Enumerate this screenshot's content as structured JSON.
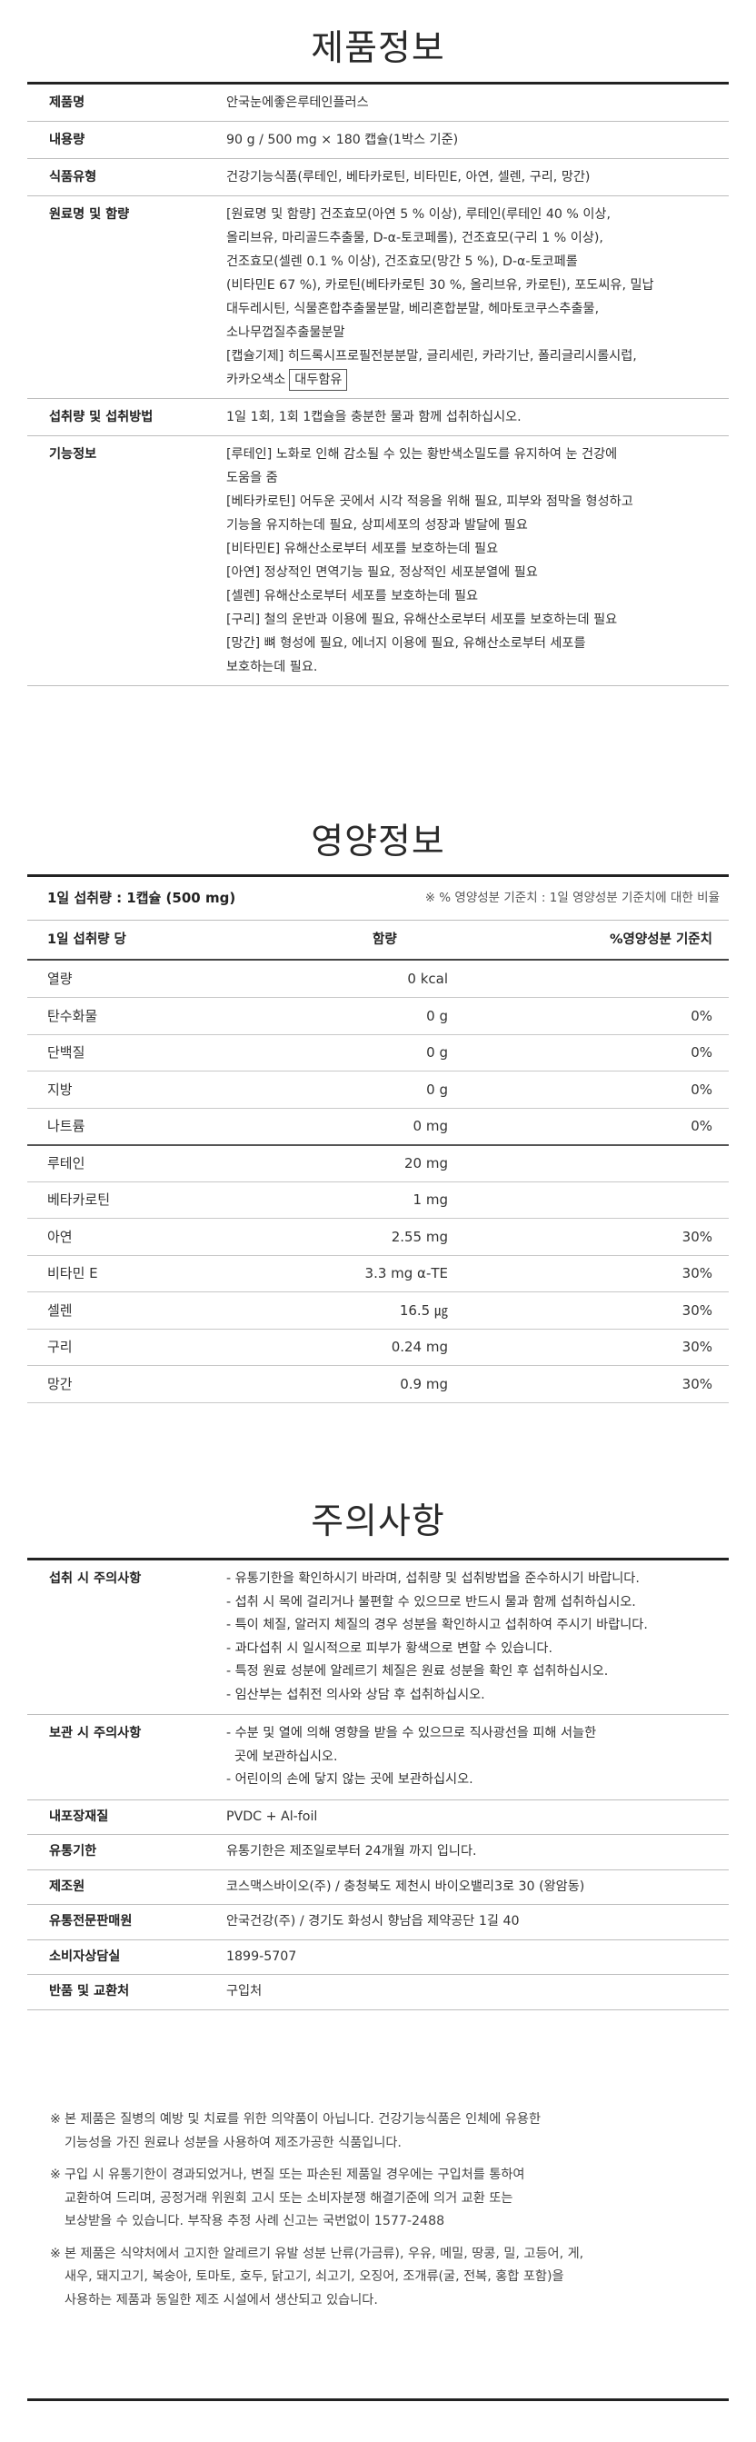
{
  "product_info": {
    "title": "제품정보",
    "rows": [
      {
        "label": "제품명",
        "lines": [
          "안국눈에좋은루테인플러스"
        ]
      },
      {
        "label": "내용량",
        "lines": [
          "90 g / 500 mg × 180 캡슐(1박스 기준)"
        ]
      },
      {
        "label": "식품유형",
        "lines": [
          "건강기능식품(루테인, 베타카로틴, 비타민E, 아연, 셀렌, 구리, 망간)"
        ]
      },
      {
        "label": "원료명 및 함량",
        "lines": [
          "[원료명 및 함량] 건조효모(아연 5 % 이상), 루테인(루테인 40 % 이상,",
          "올리브유, 마리골드추출물, D-α-토코페롤), 건조효모(구리 1 % 이상),",
          "건조효모(셀렌 0.1 % 이상), 건조효모(망간 5 %), D-α-토코페롤",
          "(비타민E 67 %), 카로틴(베타카로틴 30 %, 올리브유, 카로틴), 포도씨유, 밀납",
          "대두레시틴, 식물혼합추출물분말, 베리혼합분말, 헤마토코쿠스추출물,",
          "소나무껍질추출물분말",
          "[캡슐기제] 히드록시프로필전분분말, 글리세린, 카라기난, 폴리글리시롤시럽,"
        ],
        "last_line": "카카오색소",
        "highlight": "대두함유"
      },
      {
        "label": "섭취량 및 섭취방법",
        "lines": [
          "1일 1회, 1회 1캡슐을 충분한 물과 함께 섭취하십시오."
        ]
      },
      {
        "label": "기능정보",
        "lines": [
          "[루테인] 노화로 인해 감소될 수 있는 황반색소밀도를 유지하여 눈 건강에",
          "도움을 줌",
          "[베타카로틴] 어두운 곳에서 시각 적응을 위해 필요, 피부와 점막을 형성하고",
          "기능을 유지하는데 필요, 상피세포의 성장과 발달에 필요",
          "[비타민E] 유해산소로부터 세포를 보호하는데 필요",
          "[아연] 정상적인 면역기능 필요, 정상적인 세포분열에 필요",
          "[셀렌] 유해산소로부터 세포를 보호하는데 필요",
          "[구리] 철의 운반과 이용에 필요, 유해산소로부터 세포를 보호하는데 필요",
          "[망간] 뼈 형성에 필요, 에너지 이용에 필요, 유해산소로부터 세포를",
          "보호하는데 필요."
        ]
      }
    ]
  },
  "nutrition": {
    "title": "영양정보",
    "serving": "1일 섭취량 : 1캡슐 (500 mg)",
    "daily_note": "※ % 영양성분 기준치 : 1일 영양성분 기준치에 대한 비율",
    "col_headers": [
      "1일 섭취량 당",
      "함량",
      "%영양성분 기준치"
    ],
    "rows": [
      {
        "name": "열량",
        "amount": "0 kcal",
        "percent": ""
      },
      {
        "name": "탄수화물",
        "amount": "0 g",
        "percent": "0%"
      },
      {
        "name": "단백질",
        "amount": "0 g",
        "percent": "0%"
      },
      {
        "name": "지방",
        "amount": "0 g",
        "percent": "0%"
      },
      {
        "name": "나트륨",
        "amount": "0 mg",
        "percent": "0%"
      },
      {
        "name": "루테인",
        "amount": "20 mg",
        "percent": ""
      },
      {
        "name": "베타카로틴",
        "amount": "1 mg",
        "percent": ""
      },
      {
        "name": "아연",
        "amount": "2.55 mg",
        "percent": "30%"
      },
      {
        "name": "비타민 E",
        "amount": "3.3 mg α-TE",
        "percent": "30%"
      },
      {
        "name": "셀렌",
        "amount": "16.5 ㎍",
        "percent": "30%"
      },
      {
        "name": "구리",
        "amount": "0.24 mg",
        "percent": "30%"
      },
      {
        "name": "망간",
        "amount": "0.9 mg",
        "percent": "30%"
      }
    ]
  },
  "caution": {
    "title": "주의사항",
    "rows": [
      {
        "label": "섭취 시 주의사항",
        "lines": [
          "- 유통기한을 확인하시기 바라며, 섭취량 및 섭취방법을 준수하시기 바랍니다.",
          "- 섭취 시 목에 걸리거나 불편할 수 있으므로 반드시 물과 함께 섭취하십시오.",
          "- 특이 체질, 알러지 체질의 경우 성분을 확인하시고 섭취하여 주시기 바랍니다.",
          "- 과다섭취 시 일시적으로 피부가 황색으로 변할 수 있습니다.",
          "- 특정 원료 성분에 알레르기 체질은 원료 성분을 확인 후 섭취하십시오.",
          "- 임산부는 섭취전 의사와 상담 후 섭취하십시오."
        ]
      },
      {
        "label": "보관 시 주의사항",
        "lines": [
          "- 수분 및 열에 의해 영향을 받을 수 있으므로 직사광선을 피해 서늘한",
          "  곳에 보관하십시오.",
          "- 어린이의 손에 닿지 않는 곳에 보관하십시오."
        ]
      },
      {
        "label": "내포장재질",
        "lines": [
          "PVDC + Al-foil"
        ]
      },
      {
        "label": "유통기한",
        "lines": [
          "유통기한은 제조일로부터 24개월 까지 입니다."
        ]
      },
      {
        "label": "제조원",
        "lines": [
          "코스맥스바이오(주) / 충청북도 제천시 바이오밸리3로 30 (왕암동)"
        ]
      },
      {
        "label": "유통전문판매원",
        "lines": [
          "안국건강(주) / 경기도 화성시 향남읍 제약공단 1길 40"
        ]
      },
      {
        "label": "소비자상담실",
        "lines": [
          "1899-5707"
        ]
      },
      {
        "label": "반품 및 교환처",
        "lines": [
          "구입처"
        ]
      }
    ]
  },
  "notes": [
    {
      "mark": "※",
      "lines": [
        "본 제품은 질병의 예방 및 치료를 위한 의약품이 아닙니다. 건강기능식품은 인체에 유용한",
        "기능성을 가진 원료나 성분을 사용하여 제조가공한 식품입니다."
      ]
    },
    {
      "mark": "※",
      "lines": [
        "구입 시 유통기한이 경과되었거나, 변질 또는 파손된 제품일 경우에는 구입처를 통하여",
        "교환하여 드리며, 공정거래 위원회 고시 또는 소비자분쟁 해결기준에 의거 교환 또는",
        "보상받을 수 있습니다. 부작용 추정 사례 신고는 국번없이 1577-2488"
      ]
    },
    {
      "mark": "※",
      "lines": [
        "본 제품은 식약처에서 고지한 알레르기 유발 성분 난류(가금류), 우유, 메밀, 땅콩, 밀, 고등어, 게,",
        "새우, 돼지고기, 복숭아, 토마토, 호두, 닭고기, 쇠고기, 오징어, 조개류(굴, 전복, 홍합 포함)을",
        "사용하는 제품과 동일한 제조 시설에서 생산되고 있습니다."
      ]
    }
  ]
}
